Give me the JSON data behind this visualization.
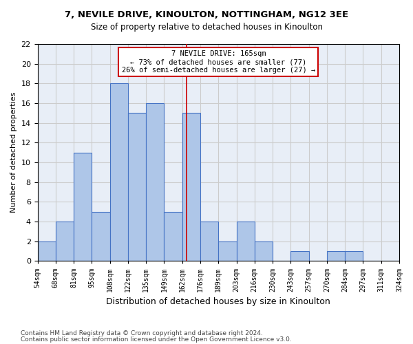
{
  "title1": "7, NEVILE DRIVE, KINOULTON, NOTTINGHAM, NG12 3EE",
  "title2": "Size of property relative to detached houses in Kinoulton",
  "xlabel": "Distribution of detached houses by size in Kinoulton",
  "ylabel": "Number of detached properties",
  "bin_labels": [
    "54sqm",
    "68sqm",
    "81sqm",
    "95sqm",
    "108sqm",
    "122sqm",
    "135sqm",
    "149sqm",
    "162sqm",
    "176sqm",
    "189sqm",
    "203sqm",
    "216sqm",
    "230sqm",
    "243sqm",
    "257sqm",
    "270sqm",
    "284sqm",
    "297sqm",
    "311sqm",
    "324sqm"
  ],
  "bin_edges": [
    54,
    67.5,
    81,
    94.5,
    108,
    121.5,
    135,
    148.5,
    162,
    175.5,
    189,
    202.5,
    216,
    229.5,
    243,
    256.5,
    270,
    283.5,
    297,
    310.5,
    324
  ],
  "bar_heights": [
    2,
    4,
    11,
    5,
    18,
    15,
    16,
    5,
    15,
    4,
    2,
    4,
    2,
    0,
    1,
    0,
    1,
    1,
    0,
    0
  ],
  "bar_color": "#aec6e8",
  "bar_edge_color": "#4472c4",
  "property_value": 165,
  "vline_color": "#cc0000",
  "annotation_text": "7 NEVILE DRIVE: 165sqm\n← 73% of detached houses are smaller (77)\n26% of semi-detached houses are larger (27) →",
  "annotation_box_color": "#ffffff",
  "annotation_box_edge": "#cc0000",
  "ylim": [
    0,
    22
  ],
  "yticks": [
    0,
    2,
    4,
    6,
    8,
    10,
    12,
    14,
    16,
    18,
    20,
    22
  ],
  "background_color": "#ffffff",
  "grid_color": "#cccccc",
  "footer1": "Contains HM Land Registry data © Crown copyright and database right 2024.",
  "footer2": "Contains public sector information licensed under the Open Government Licence v3.0."
}
